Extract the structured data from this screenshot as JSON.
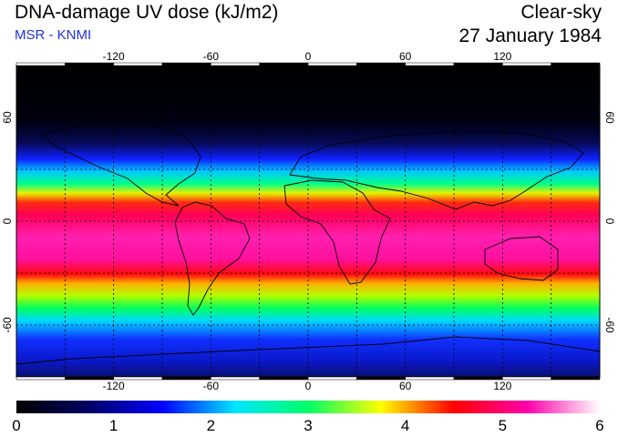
{
  "header": {
    "title": "DNA-damage UV dose (kJ/m2)",
    "source": "MSR - KNMI",
    "condition": "Clear-sky",
    "date": "27 January 1984"
  },
  "map": {
    "projection": "equirectangular",
    "lon_range": [
      -180,
      180
    ],
    "lat_range": [
      -90,
      90
    ],
    "grid_lon": [
      -150,
      -120,
      -90,
      -60,
      -30,
      0,
      30,
      60,
      90,
      120,
      150
    ],
    "grid_lat": [
      -60,
      -30,
      0,
      30,
      60
    ],
    "lon_ticks": [
      {
        "value": -120,
        "label": "-120"
      },
      {
        "value": -60,
        "label": "-60"
      },
      {
        "value": 0,
        "label": "0"
      },
      {
        "value": 60,
        "label": "60"
      },
      {
        "value": 120,
        "label": "120"
      }
    ],
    "lat_ticks": [
      {
        "value": 60,
        "label": "60"
      },
      {
        "value": 0,
        "label": "0"
      },
      {
        "value": -60,
        "label": "-60"
      }
    ],
    "right_lat_ticks": [
      {
        "value": 60,
        "label": "60"
      },
      {
        "value": 0,
        "label": "0"
      },
      {
        "value": -60,
        "label": "-60"
      }
    ]
  },
  "colorbar": {
    "min": 0,
    "max": 6,
    "ticks": [
      {
        "value": 0,
        "label": "0"
      },
      {
        "value": 1,
        "label": "1"
      },
      {
        "value": 2,
        "label": "2"
      },
      {
        "value": 3,
        "label": "3"
      },
      {
        "value": 4,
        "label": "4"
      },
      {
        "value": 5,
        "label": "5"
      },
      {
        "value": 6,
        "label": "6"
      }
    ],
    "stops": [
      "#000000",
      "#000066",
      "#0000ff",
      "#00e5ff",
      "#00ff66",
      "#ffff00",
      "#ff0000",
      "#ff00aa",
      "#ffffff"
    ]
  }
}
